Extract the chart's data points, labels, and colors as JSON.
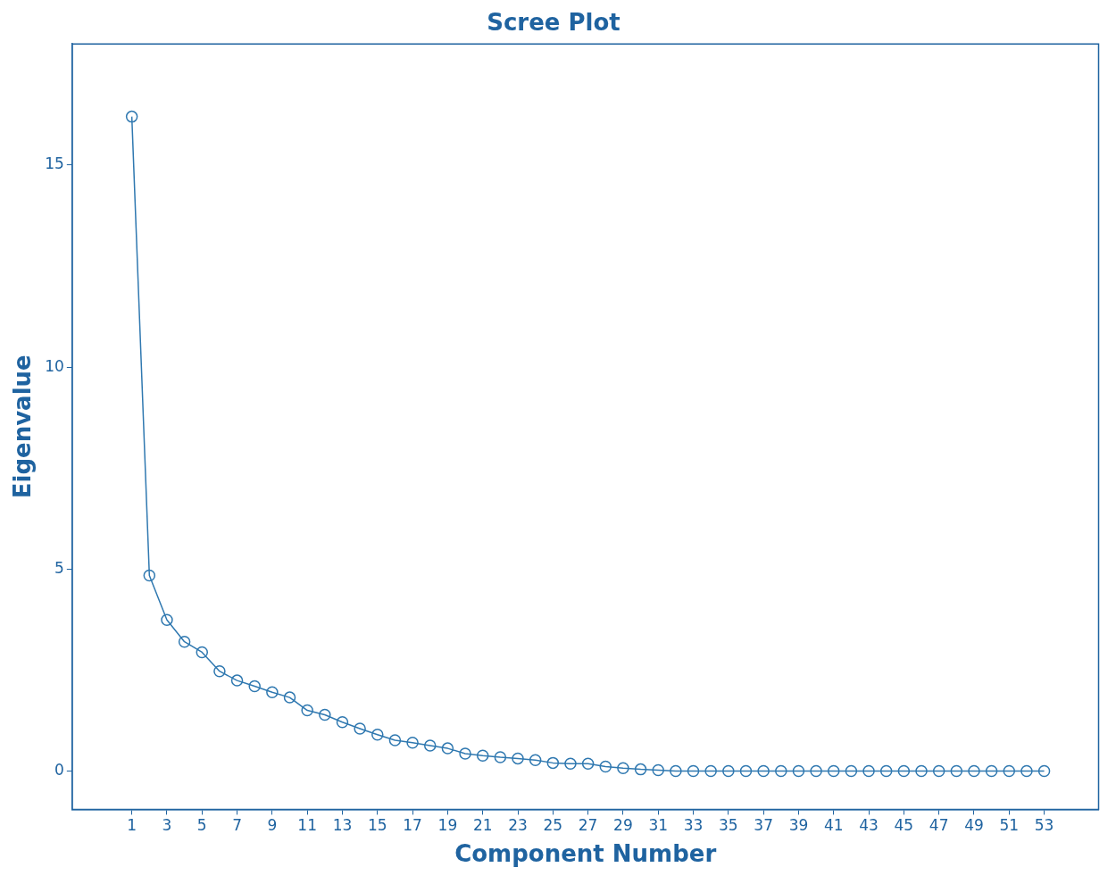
{
  "chart_data": {
    "type": "line",
    "title": "Scree Plot",
    "xlabel": "Component Number",
    "ylabel": "Eigenvalue",
    "x": [
      1,
      2,
      3,
      4,
      5,
      6,
      7,
      8,
      9,
      10,
      11,
      12,
      13,
      14,
      15,
      16,
      17,
      18,
      19,
      20,
      21,
      22,
      23,
      24,
      25,
      26,
      27,
      28,
      29,
      30,
      31,
      32,
      33,
      34,
      35,
      36,
      37,
      38,
      39,
      40,
      41,
      42,
      43,
      44,
      45,
      46,
      47,
      48,
      49,
      50,
      51,
      52,
      53
    ],
    "values": [
      16.2,
      4.84,
      3.74,
      3.2,
      2.94,
      2.47,
      2.24,
      2.1,
      1.95,
      1.82,
      1.5,
      1.39,
      1.21,
      1.05,
      0.9,
      0.76,
      0.7,
      0.63,
      0.56,
      0.43,
      0.38,
      0.34,
      0.31,
      0.27,
      0.2,
      0.18,
      0.18,
      0.11,
      0.07,
      0.04,
      0.02,
      0,
      0,
      0,
      0,
      0,
      0,
      0,
      0,
      0,
      0,
      0,
      0,
      0,
      0,
      0,
      0,
      0,
      0,
      0,
      0,
      0,
      0
    ],
    "color": "#2f78b0",
    "marker": "circle",
    "line_style": "solid",
    "grid": false,
    "legend": false,
    "xlim": [
      -2.4,
      56.1
    ],
    "ylim": [
      -0.95,
      18
    ],
    "xticks": [
      1,
      3,
      5,
      7,
      9,
      11,
      13,
      15,
      17,
      19,
      21,
      23,
      25,
      27,
      29,
      31,
      33,
      35,
      37,
      39,
      41,
      43,
      45,
      47,
      49,
      51,
      53
    ],
    "yticks": [
      0,
      5,
      10,
      15
    ]
  }
}
